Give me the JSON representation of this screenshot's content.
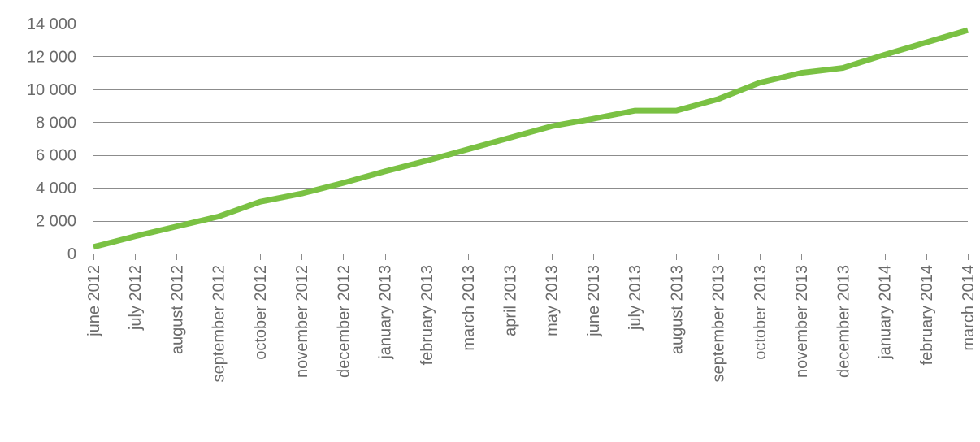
{
  "chart_data": {
    "type": "line",
    "title": "",
    "xlabel": "",
    "ylabel": "",
    "ylim": [
      0,
      14000
    ],
    "yticks": [
      "0",
      "2 000",
      "4 000",
      "6 000",
      "8 000",
      "10 000",
      "12 000",
      "14 000"
    ],
    "ytick_values": [
      0,
      2000,
      4000,
      6000,
      8000,
      10000,
      12000,
      14000
    ],
    "grid": true,
    "legend": "none",
    "categories": [
      "june 2012",
      "july 2012",
      "august 2012",
      "september 2012",
      "october 2012",
      "november 2012",
      "december 2012",
      "january 2013",
      "february 2013",
      "march 2013",
      "april 2013",
      "may 2013",
      "june 2013",
      "july 2013",
      "august 2013",
      "september 2013",
      "october 2013",
      "november 2013",
      "december 2013",
      "january 2014",
      "february 2014",
      "march 2014"
    ],
    "series": [
      {
        "color": "#7ac143",
        "values": [
          400,
          1050,
          1650,
          2250,
          3150,
          3650,
          4300,
          5000,
          5650,
          6350,
          7050,
          7750,
          8200,
          8700,
          8700,
          9400,
          10400,
          11000,
          11300,
          12100,
          12850,
          13600
        ]
      }
    ]
  }
}
